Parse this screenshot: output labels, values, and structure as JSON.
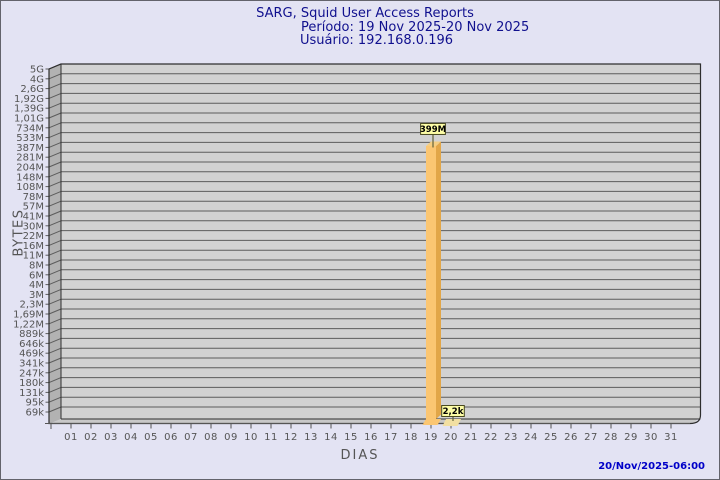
{
  "window": {
    "background": "#E3E3F3",
    "border_color": "#63636B"
  },
  "header": {
    "title": "SARG, Squid User Access Reports",
    "period": "Período: 19 Nov 2025-20 Nov 2025",
    "user": "Usuário: 192.168.0.196",
    "text_color": "#10108E"
  },
  "footer": {
    "timestamp": "20/Nov/2025-06:00",
    "text_color": "#0000C8"
  },
  "chart_data": {
    "type": "bar",
    "title": "SARG, Squid User Access Reports",
    "xlabel": "DIAS",
    "ylabel": "BYTES",
    "grid": true,
    "style": "3d-bar",
    "x_tick_labels": [
      "01",
      "02",
      "03",
      "04",
      "05",
      "06",
      "07",
      "08",
      "09",
      "10",
      "11",
      "12",
      "13",
      "14",
      "15",
      "16",
      "17",
      "18",
      "19",
      "20",
      "21",
      "22",
      "23",
      "24",
      "25",
      "26",
      "27",
      "28",
      "29",
      "30",
      "31"
    ],
    "y_tick_labels": [
      "5G",
      "4G",
      "2,6G",
      "1,92G",
      "1,39G",
      "1,01G",
      "734M",
      "533M",
      "387M",
      "281M",
      "204M",
      "148M",
      "108M",
      "78M",
      "57M",
      "41M",
      "30M",
      "22M",
      "16M",
      "11M",
      "8M",
      "6M",
      "4M",
      "3M",
      "2,3M",
      "1,69M",
      "1,22M",
      "889k",
      "646k",
      "469k",
      "341k",
      "247k",
      "180k",
      "131k",
      "95k",
      "69k"
    ],
    "y_tick_values": [
      5000000000,
      4000000000,
      2600000000,
      1920000000,
      1390000000,
      1010000000,
      734000000,
      533000000,
      387000000,
      281000000,
      204000000,
      148000000,
      108000000,
      78000000,
      57000000,
      41000000,
      30000000,
      22000000,
      16000000,
      11000000,
      8000000,
      6000000,
      4000000,
      3000000,
      2300000,
      1690000,
      1220000,
      889000,
      646000,
      469000,
      341000,
      247000,
      180000,
      131000,
      95000,
      69000
    ],
    "bars": [
      {
        "day": "19",
        "label": "399M",
        "bytes": 399000000
      },
      {
        "day": "20",
        "label": "2,2k",
        "bytes": 2200
      }
    ],
    "colors": {
      "plot_bg": "#D2D2D2",
      "wall": "#B2B2B2",
      "bottom_face": "#C8C8C8",
      "grid": "#5C5C5C",
      "frame": "#2E2E2E",
      "axis_text": "#555555",
      "bar_front": "#FBC672",
      "bar_side": "#E2A648",
      "bar_top": "#F5CE82",
      "bar_floor_tiny": "#F2DFA2",
      "label_bg": "#FDFDA6",
      "label_border": "#4A4A20",
      "stick": "#62623A"
    }
  }
}
